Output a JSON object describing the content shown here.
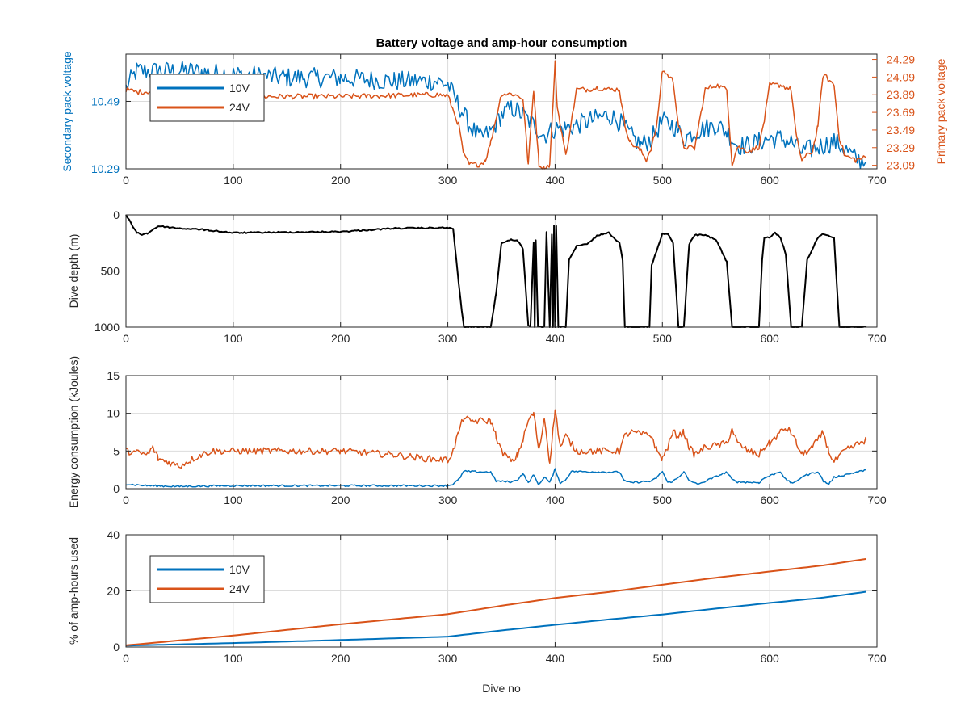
{
  "figure": {
    "title": "Battery voltage and amp-hour consumption",
    "xlabel": "Dive no"
  },
  "colors": {
    "series_10v": "#0072BD",
    "series_24v": "#D95319",
    "depth": "#000000",
    "axis": "#262626",
    "grid": "#dcdcdc"
  },
  "chart_data": [
    {
      "type": "line",
      "title": "Battery voltage and amp-hour consumption",
      "xlabel": "",
      "ylabel": "Secondary pack voltage",
      "y2label": "Primary pack voltage",
      "xlim": [
        0,
        700
      ],
      "xticks": [
        0,
        100,
        200,
        300,
        400,
        500,
        600,
        700
      ],
      "ylim": [
        10.29,
        10.63
      ],
      "yticks": [
        "10.29",
        "10.49"
      ],
      "y2lim": [
        23.05,
        24.35
      ],
      "y2ticks": [
        "23.09",
        "23.29",
        "23.49",
        "23.69",
        "23.89",
        "24.09",
        "24.29"
      ],
      "grid": true,
      "legend": {
        "placement": "top-left",
        "entries": [
          "10V",
          "24V"
        ]
      },
      "series": [
        {
          "name": "10V",
          "axis": "left",
          "x": [
            0,
            10,
            30,
            60,
            100,
            150,
            200,
            250,
            290,
            300,
            310,
            320,
            330,
            340,
            350,
            360,
            370,
            380,
            390,
            400,
            410,
            420,
            430,
            440,
            450,
            460,
            470,
            480,
            490,
            500,
            510,
            520,
            530,
            540,
            550,
            560,
            570,
            580,
            590,
            600,
            610,
            620,
            630,
            640,
            650,
            660,
            670,
            680,
            690
          ],
          "y": [
            10.53,
            10.58,
            10.58,
            10.58,
            10.57,
            10.56,
            10.56,
            10.55,
            10.55,
            10.54,
            10.48,
            10.42,
            10.38,
            10.4,
            10.45,
            10.47,
            10.45,
            10.42,
            10.39,
            10.41,
            10.41,
            10.42,
            10.43,
            10.44,
            10.45,
            10.43,
            10.39,
            10.36,
            10.38,
            10.43,
            10.42,
            10.38,
            10.4,
            10.41,
            10.42,
            10.4,
            10.36,
            10.36,
            10.37,
            10.38,
            10.38,
            10.37,
            10.34,
            10.35,
            10.36,
            10.37,
            10.35,
            10.32,
            10.31
          ],
          "noise": 0.03
        },
        {
          "name": "24V",
          "axis": "right",
          "x": [
            0,
            10,
            30,
            60,
            100,
            200,
            290,
            300,
            310,
            315,
            320,
            330,
            335,
            340,
            350,
            360,
            370,
            375,
            380,
            385,
            390,
            395,
            400,
            402,
            410,
            420,
            430,
            440,
            450,
            460,
            465,
            470,
            480,
            485,
            490,
            495,
            500,
            510,
            515,
            520,
            530,
            540,
            550,
            560,
            565,
            570,
            580,
            590,
            595,
            600,
            610,
            620,
            625,
            630,
            640,
            645,
            650,
            660,
            665,
            670,
            680,
            690
          ],
          "y": [
            23.95,
            23.92,
            23.93,
            23.88,
            23.87,
            23.87,
            23.89,
            23.88,
            23.55,
            23.2,
            23.1,
            23.1,
            23.15,
            23.35,
            23.9,
            23.9,
            23.85,
            23.1,
            23.95,
            23.1,
            23.05,
            23.1,
            24.25,
            23.75,
            23.2,
            23.95,
            23.95,
            23.97,
            23.95,
            23.95,
            23.55,
            23.35,
            23.25,
            23.15,
            23.3,
            23.55,
            24.17,
            24.05,
            23.55,
            23.3,
            23.28,
            23.95,
            24.0,
            23.95,
            23.1,
            23.3,
            23.25,
            23.3,
            23.6,
            24.0,
            24.0,
            23.95,
            23.4,
            23.15,
            23.25,
            23.55,
            24.12,
            24.0,
            23.4,
            23.2,
            23.15,
            23.18
          ],
          "noise": 0.03
        }
      ]
    },
    {
      "type": "line",
      "xlabel": "",
      "ylabel": "Dive depth (m)",
      "xlim": [
        0,
        700
      ],
      "xticks": [
        0,
        100,
        200,
        300,
        400,
        500,
        600,
        700
      ],
      "ylim": [
        1000,
        0
      ],
      "yticks": [
        "0",
        "500",
        "1000"
      ],
      "grid": true,
      "series": [
        {
          "name": "",
          "x": [
            0,
            5,
            10,
            15,
            20,
            30,
            50,
            70,
            80,
            100,
            150,
            200,
            250,
            300,
            305,
            310,
            313,
            315,
            320,
            340,
            345,
            350,
            360,
            365,
            370,
            375,
            377,
            380,
            381,
            382,
            384,
            386,
            390,
            392,
            395,
            397,
            398,
            399,
            400,
            401,
            403,
            405,
            410,
            413,
            420,
            430,
            440,
            450,
            460,
            463,
            465,
            470,
            480,
            488,
            490,
            500,
            505,
            510,
            515,
            518,
            520,
            525,
            530,
            540,
            550,
            560,
            565,
            570,
            590,
            593,
            595,
            600,
            605,
            610,
            615,
            620,
            625,
            630,
            635,
            645,
            650,
            660,
            665,
            670,
            680,
            690
          ],
          "y": [
            0,
            80,
            160,
            175,
            165,
            100,
            120,
            130,
            140,
            160,
            155,
            150,
            120,
            115,
            125,
            600,
            850,
            1000,
            1000,
            1000,
            700,
            250,
            220,
            230,
            300,
            980,
            1000,
            250,
            1000,
            230,
            1000,
            1000,
            1000,
            150,
            1000,
            180,
            1000,
            100,
            1000,
            100,
            1000,
            1000,
            1000,
            400,
            280,
            260,
            180,
            160,
            250,
            400,
            1000,
            1000,
            1000,
            1000,
            450,
            170,
            170,
            250,
            1000,
            1000,
            1000,
            260,
            180,
            180,
            220,
            420,
            1000,
            1000,
            1000,
            400,
            200,
            200,
            160,
            200,
            350,
            1000,
            1000,
            1000,
            400,
            200,
            170,
            200,
            1000,
            1000,
            1000,
            1000
          ],
          "noise": 6
        }
      ]
    },
    {
      "type": "line",
      "xlabel": "",
      "ylabel": "Energy consumption (kJoules)",
      "xlim": [
        0,
        700
      ],
      "xticks": [
        0,
        100,
        200,
        300,
        400,
        500,
        600,
        700
      ],
      "ylim": [
        0,
        15
      ],
      "yticks": [
        "0",
        "5",
        "10",
        "15"
      ],
      "grid": true,
      "series": [
        {
          "name": "10V",
          "x": [
            0,
            20,
            50,
            100,
            200,
            300,
            305,
            310,
            315,
            340,
            345,
            360,
            365,
            370,
            375,
            380,
            385,
            390,
            395,
            400,
            405,
            410,
            415,
            450,
            460,
            465,
            470,
            490,
            495,
            500,
            505,
            510,
            515,
            520,
            525,
            535,
            540,
            560,
            565,
            570,
            590,
            595,
            610,
            615,
            620,
            625,
            630,
            645,
            650,
            655,
            660,
            690
          ],
          "y": [
            0.6,
            0.4,
            0.3,
            0.4,
            0.4,
            0.4,
            0.6,
            1.2,
            2.3,
            2.2,
            1.0,
            0.9,
            1.2,
            2.0,
            0.8,
            1.8,
            0.5,
            1.6,
            0.8,
            2.6,
            0.7,
            1.2,
            2.3,
            2.2,
            2.2,
            1.0,
            0.8,
            1.0,
            1.5,
            2.3,
            0.8,
            1.0,
            1.5,
            2.3,
            1.0,
            0.6,
            1.0,
            2.2,
            1.2,
            0.9,
            0.8,
            1.4,
            2.3,
            1.2,
            0.8,
            0.9,
            1.6,
            2.3,
            1.0,
            0.6,
            1.5,
            2.5
          ],
          "noise": 0.12
        },
        {
          "name": "24V",
          "x": [
            0,
            10,
            20,
            25,
            30,
            40,
            50,
            60,
            70,
            80,
            100,
            150,
            200,
            250,
            280,
            300,
            305,
            310,
            315,
            320,
            340,
            345,
            350,
            360,
            365,
            370,
            375,
            380,
            385,
            390,
            395,
            400,
            405,
            410,
            420,
            440,
            460,
            465,
            470,
            490,
            495,
            500,
            505,
            510,
            515,
            520,
            525,
            530,
            540,
            560,
            565,
            570,
            580,
            590,
            595,
            600,
            610,
            615,
            620,
            625,
            630,
            640,
            650,
            655,
            660,
            670,
            690
          ],
          "y": [
            5.0,
            4.8,
            4.5,
            5.5,
            4.0,
            3.5,
            3.0,
            3.8,
            4.5,
            5.0,
            5.0,
            5.0,
            5.0,
            4.5,
            4.0,
            3.8,
            5.0,
            7.5,
            9.5,
            9.0,
            9.0,
            7.0,
            5.0,
            3.5,
            4.5,
            6.5,
            9.0,
            10.0,
            5.0,
            9.5,
            3.5,
            10.5,
            5.5,
            7.0,
            5.0,
            5.0,
            5.0,
            7.0,
            7.5,
            7.0,
            5.0,
            4.0,
            5.5,
            7.5,
            7.0,
            7.5,
            5.5,
            4.5,
            5.5,
            6.0,
            8.0,
            6.0,
            5.0,
            4.5,
            5.5,
            6.0,
            7.5,
            8.0,
            7.5,
            6.0,
            4.5,
            5.5,
            7.5,
            5.0,
            3.5,
            5.0,
            6.5
          ],
          "noise": 0.45
        }
      ]
    },
    {
      "type": "line",
      "xlabel": "Dive no",
      "ylabel": "% of amp-hours used",
      "xlim": [
        0,
        700
      ],
      "xticks": [
        0,
        100,
        200,
        300,
        400,
        500,
        600,
        700
      ],
      "ylim": [
        0,
        40
      ],
      "yticks": [
        "0",
        "20",
        "40"
      ],
      "grid": true,
      "legend": {
        "placement": "bottom-left",
        "entries": [
          "10V",
          "24V"
        ]
      },
      "series": [
        {
          "name": "10V",
          "x": [
            0,
            100,
            200,
            300,
            350,
            400,
            450,
            500,
            550,
            600,
            650,
            690
          ],
          "y": [
            0.5,
            1.4,
            2.5,
            3.7,
            5.9,
            7.9,
            9.8,
            11.6,
            13.7,
            15.7,
            17.6,
            19.7
          ],
          "noise": 0
        },
        {
          "name": "24V",
          "x": [
            0,
            100,
            200,
            300,
            350,
            400,
            450,
            500,
            550,
            600,
            650,
            690
          ],
          "y": [
            0.6,
            4.1,
            8.1,
            11.7,
            14.7,
            17.5,
            19.6,
            22.2,
            24.7,
            26.9,
            29.1,
            31.4
          ],
          "noise": 0
        }
      ]
    }
  ]
}
